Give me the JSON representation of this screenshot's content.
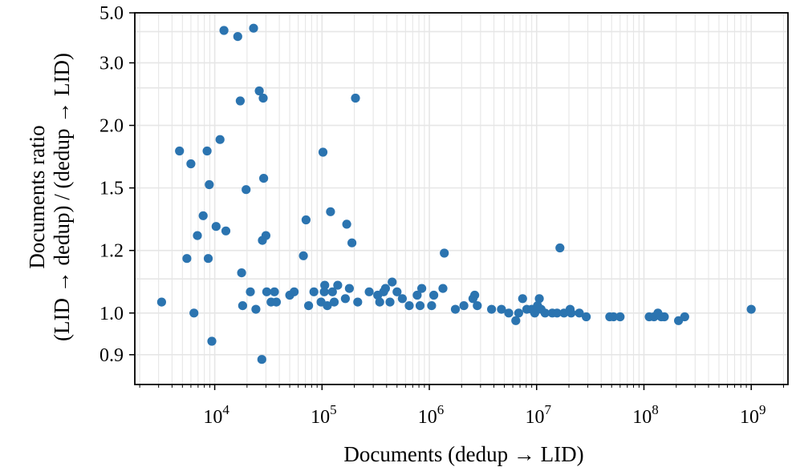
{
  "chart_data": {
    "type": "scatter",
    "xlabel": "Documents (dedup → LID)",
    "ylabel_line1": "Documents ratio",
    "ylabel_line2": "(LID → dedup) / (dedup → LID)",
    "x_scale": "log",
    "y_scale": "reciprocal",
    "xlim": [
      1800,
      2200000000
    ],
    "ylim": [
      0.84,
      5.0
    ],
    "x_ticks": [
      {
        "value": 10000,
        "base": "10",
        "exp": "4"
      },
      {
        "value": 100000,
        "base": "10",
        "exp": "5"
      },
      {
        "value": 1000000,
        "base": "10",
        "exp": "6"
      },
      {
        "value": 10000000,
        "base": "10",
        "exp": "7"
      },
      {
        "value": 100000000,
        "base": "10",
        "exp": "8"
      },
      {
        "value": 1000000000,
        "base": "10",
        "exp": "9"
      }
    ],
    "y_ticks": [
      {
        "value": 5.0,
        "label": "5.0"
      },
      {
        "value": 3.0,
        "label": "3.0"
      },
      {
        "value": 2.0,
        "label": "2.0"
      },
      {
        "value": 1.5,
        "label": "1.5"
      },
      {
        "value": 1.2,
        "label": "1.2"
      },
      {
        "value": 1.0,
        "label": "1.0"
      },
      {
        "value": 0.9,
        "label": "0.9"
      }
    ],
    "grid": true,
    "point_color": "#2b74b0",
    "points": [
      [
        3200,
        1.03
      ],
      [
        4700,
        1.76
      ],
      [
        5500,
        1.17
      ],
      [
        6000,
        1.66
      ],
      [
        6400,
        1.0
      ],
      [
        6900,
        1.26
      ],
      [
        7800,
        1.35
      ],
      [
        8500,
        1.76
      ],
      [
        8700,
        1.17
      ],
      [
        8900,
        1.52
      ],
      [
        9400,
        0.93
      ],
      [
        10300,
        1.3
      ],
      [
        11200,
        1.86
      ],
      [
        12200,
        4.05
      ],
      [
        12700,
        1.28
      ],
      [
        16400,
        3.8
      ],
      [
        17300,
        2.3
      ],
      [
        17800,
        1.12
      ],
      [
        18200,
        1.02
      ],
      [
        19600,
        1.49
      ],
      [
        21500,
        1.06
      ],
      [
        23000,
        4.15
      ],
      [
        24200,
        1.01
      ],
      [
        26000,
        2.45
      ],
      [
        27500,
        0.89
      ],
      [
        27800,
        1.24
      ],
      [
        28300,
        2.34
      ],
      [
        28600,
        1.56
      ],
      [
        30000,
        1.26
      ],
      [
        30500,
        1.06
      ],
      [
        33500,
        1.03
      ],
      [
        36000,
        1.06
      ],
      [
        37500,
        1.03
      ],
      [
        50000,
        1.05
      ],
      [
        55000,
        1.06
      ],
      [
        67000,
        1.18
      ],
      [
        71000,
        1.33
      ],
      [
        75000,
        1.02
      ],
      [
        84000,
        1.06
      ],
      [
        98000,
        1.03
      ],
      [
        102000,
        1.75
      ],
      [
        105000,
        1.06
      ],
      [
        106000,
        1.08
      ],
      [
        112000,
        1.02
      ],
      [
        120000,
        1.37
      ],
      [
        125000,
        1.06
      ],
      [
        130000,
        1.03
      ],
      [
        140000,
        1.08
      ],
      [
        165000,
        1.04
      ],
      [
        170000,
        1.31
      ],
      [
        180000,
        1.07
      ],
      [
        190000,
        1.23
      ],
      [
        205000,
        2.34
      ],
      [
        215000,
        1.03
      ],
      [
        275000,
        1.06
      ],
      [
        330000,
        1.05
      ],
      [
        345000,
        1.03
      ],
      [
        375000,
        1.06
      ],
      [
        390000,
        1.07
      ],
      [
        430000,
        1.03
      ],
      [
        450000,
        1.09
      ],
      [
        500000,
        1.06
      ],
      [
        560000,
        1.04
      ],
      [
        650000,
        1.02
      ],
      [
        770000,
        1.05
      ],
      [
        820000,
        1.02
      ],
      [
        850000,
        1.07
      ],
      [
        1050000,
        1.02
      ],
      [
        1100000,
        1.05
      ],
      [
        1340000,
        1.07
      ],
      [
        1380000,
        1.19
      ],
      [
        1750000,
        1.01
      ],
      [
        2100000,
        1.02
      ],
      [
        2550000,
        1.04
      ],
      [
        2650000,
        1.05
      ],
      [
        2800000,
        1.02
      ],
      [
        3800000,
        1.01
      ],
      [
        4700000,
        1.01
      ],
      [
        5500000,
        1.0
      ],
      [
        6400000,
        0.98
      ],
      [
        6800000,
        1.0
      ],
      [
        7400000,
        1.04
      ],
      [
        8100000,
        1.01
      ],
      [
        9000000,
        1.01
      ],
      [
        9600000,
        1.0
      ],
      [
        10200000,
        1.02
      ],
      [
        10600000,
        1.04
      ],
      [
        11000000,
        1.01
      ],
      [
        12000000,
        1.0
      ],
      [
        14000000,
        1.0
      ],
      [
        15500000,
        1.0
      ],
      [
        16500000,
        1.21
      ],
      [
        18000000,
        1.0
      ],
      [
        20500000,
        1.01
      ],
      [
        21000000,
        1.0
      ],
      [
        25000000,
        1.0
      ],
      [
        29000000,
        0.99
      ],
      [
        48000000,
        0.99
      ],
      [
        52000000,
        0.99
      ],
      [
        60000000,
        0.99
      ],
      [
        112000000,
        0.99
      ],
      [
        124000000,
        0.99
      ],
      [
        135000000,
        1.0
      ],
      [
        145000000,
        0.99
      ],
      [
        155000000,
        0.99
      ],
      [
        210000000,
        0.98
      ],
      [
        240000000,
        0.99
      ],
      [
        1000000000,
        1.01
      ]
    ]
  }
}
